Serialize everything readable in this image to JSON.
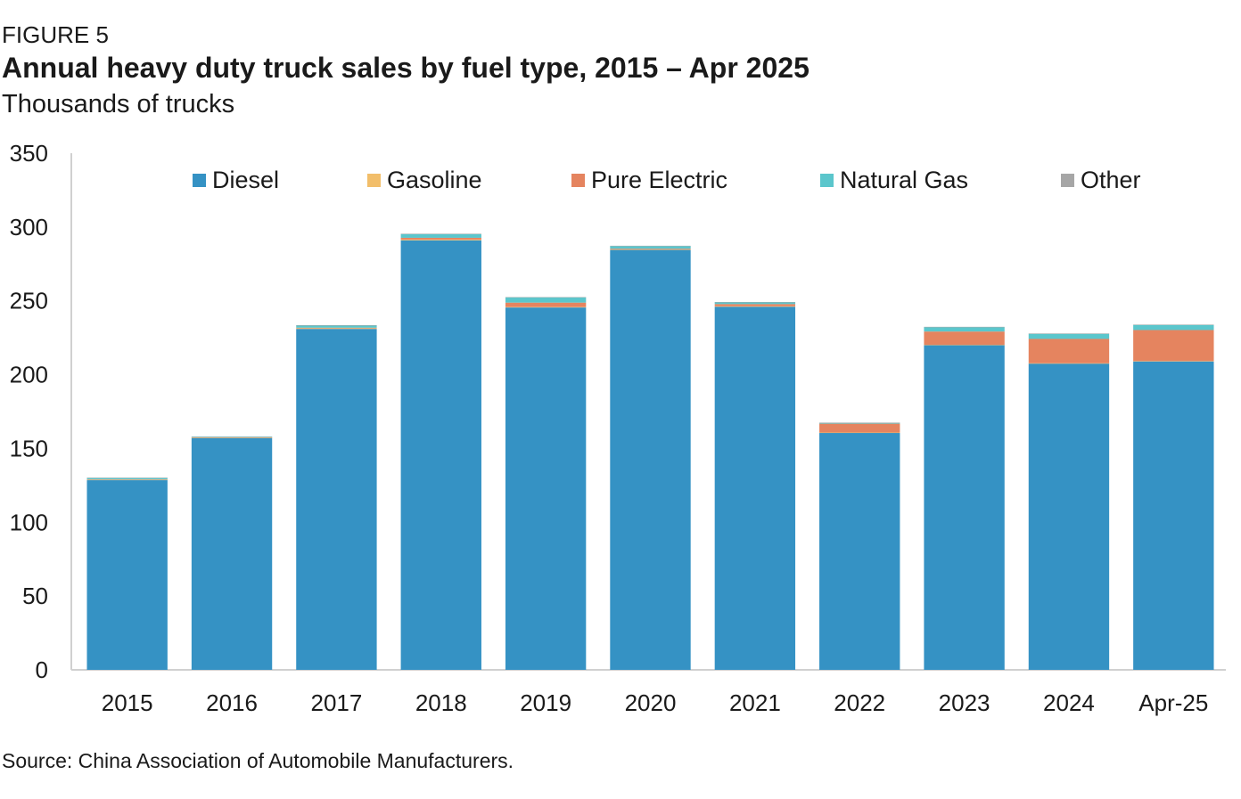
{
  "figure_label": "FIGURE 5",
  "title": "Annual heavy duty truck sales by fuel type, 2015 – Apr 2025",
  "subtitle": "Thousands of trucks",
  "source": "Source:  China Association of Automobile Manufacturers.",
  "chart_data": {
    "type": "bar",
    "stacked": true,
    "categories": [
      "2015",
      "2016",
      "2017",
      "2018",
      "2019",
      "2020",
      "2021",
      "2022",
      "2023",
      "2024",
      "Apr-25"
    ],
    "series": [
      {
        "name": "Diesel",
        "color": "#3592c4",
        "values": [
          128.5,
          157,
          231,
          291,
          245.5,
          284.5,
          246,
          160.5,
          220,
          207.5,
          209
        ]
      },
      {
        "name": "Gasoline",
        "color": "#f2be6a",
        "values": [
          0.3,
          0.2,
          0.5,
          0.5,
          0.3,
          0.3,
          0.3,
          0.3,
          0.2,
          0.2,
          0.2
        ]
      },
      {
        "name": "Pure Electric",
        "color": "#e5845f",
        "values": [
          0.2,
          0.2,
          0.3,
          1.2,
          3,
          0.5,
          1.5,
          6,
          9,
          16.5,
          21
        ]
      },
      {
        "name": "Natural Gas",
        "color": "#5bc6cc",
        "values": [
          1,
          0.5,
          1.5,
          2.5,
          3.5,
          1.8,
          1.2,
          0.5,
          3,
          3.5,
          3.5
        ]
      },
      {
        "name": "Other",
        "color": "#a6a6a6",
        "values": [
          0.2,
          0.1,
          0.2,
          0.3,
          0.2,
          0.2,
          0.2,
          0.2,
          0.2,
          0.2,
          0.2
        ]
      }
    ],
    "yticks": [
      0,
      50,
      100,
      150,
      200,
      250,
      300,
      350
    ],
    "ylim": [
      0,
      350
    ],
    "grid": false,
    "legend_position": "top"
  }
}
